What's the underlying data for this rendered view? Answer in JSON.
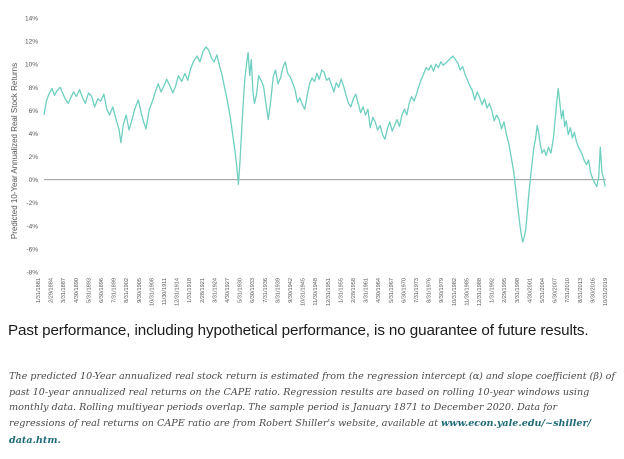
{
  "chart_data": {
    "type": "line",
    "ylabel": "Predicted 10-Year Annualized Real Stock Returns",
    "xlabel": "",
    "ylim": [
      -8,
      14
    ],
    "yticks": [
      14,
      12,
      10,
      8,
      6,
      4,
      2,
      0,
      -2,
      -4,
      -6,
      -8
    ],
    "ytick_labels": [
      "14%",
      "12%",
      "10%",
      "8%",
      "6%",
      "4%",
      "2%",
      "0%",
      "-2%",
      "-4%",
      "-6%",
      "-8%"
    ],
    "xlim": [
      1881.0,
      2019.8
    ],
    "xtick_labels": [
      "1/31/1881",
      "2/29/1884",
      "3/31/1887",
      "4/30/1890",
      "5/31/1893",
      "6/30/1896",
      "7/31/1899",
      "8/31/1902",
      "9/30/1905",
      "10/31/1908",
      "11/30/1911",
      "12/31/1914",
      "1/31/1918",
      "2/28/1921",
      "3/31/1924",
      "4/30/1927",
      "5/31/1930",
      "6/30/1933",
      "7/31/1936",
      "8/31/1939",
      "9/30/1942",
      "10/31/1945",
      "11/30/1948",
      "12/31/1951",
      "1/31/1955",
      "2/28/1958",
      "3/31/1961",
      "4/30/1964",
      "5/31/1967",
      "6/30/1970",
      "7/31/1973",
      "8/31/1976",
      "9/30/1979",
      "10/31/1982",
      "11/30/1985",
      "12/31/1988",
      "1/31/1992",
      "2/29/1995",
      "3/31/1998",
      "4/30/2001",
      "5/31/2004",
      "6/30/2007",
      "7/31/2010",
      "8/31/2013",
      "9/30/2016",
      "10/31/2019"
    ],
    "reference_line": 0,
    "series": [
      {
        "name": "Predicted 10-Year Annualized Real Stock Return",
        "color": "#6fcfc0",
        "points": [
          [
            1881.0,
            5.6
          ],
          [
            1881.6,
            6.8
          ],
          [
            1882.2,
            7.4
          ],
          [
            1883.0,
            7.9
          ],
          [
            1883.6,
            7.3
          ],
          [
            1884.2,
            7.7
          ],
          [
            1885.0,
            8.0
          ],
          [
            1885.6,
            7.5
          ],
          [
            1886.2,
            7.0
          ],
          [
            1887.0,
            6.6
          ],
          [
            1887.6,
            7.1
          ],
          [
            1888.3,
            7.6
          ],
          [
            1889.0,
            7.2
          ],
          [
            1889.8,
            7.8
          ],
          [
            1890.5,
            7.1
          ],
          [
            1891.2,
            6.6
          ],
          [
            1892.0,
            7.5
          ],
          [
            1892.8,
            7.2
          ],
          [
            1893.5,
            6.3
          ],
          [
            1894.3,
            7.0
          ],
          [
            1895.0,
            6.8
          ],
          [
            1895.8,
            7.4
          ],
          [
            1896.5,
            6.1
          ],
          [
            1897.2,
            5.6
          ],
          [
            1898.0,
            6.3
          ],
          [
            1898.8,
            5.2
          ],
          [
            1899.5,
            4.4
          ],
          [
            1900.0,
            3.2
          ],
          [
            1900.6,
            4.8
          ],
          [
            1901.3,
            5.6
          ],
          [
            1902.0,
            4.3
          ],
          [
            1902.8,
            5.3
          ],
          [
            1903.5,
            6.2
          ],
          [
            1904.3,
            6.9
          ],
          [
            1905.0,
            5.8
          ],
          [
            1905.6,
            5.0
          ],
          [
            1906.2,
            4.4
          ],
          [
            1907.0,
            6.1
          ],
          [
            1907.8,
            6.8
          ],
          [
            1908.5,
            7.6
          ],
          [
            1909.2,
            8.3
          ],
          [
            1909.9,
            7.6
          ],
          [
            1910.6,
            8.1
          ],
          [
            1911.3,
            8.7
          ],
          [
            1912.0,
            8.2
          ],
          [
            1912.8,
            7.5
          ],
          [
            1913.5,
            8.1
          ],
          [
            1914.2,
            9.0
          ],
          [
            1915.0,
            8.5
          ],
          [
            1915.8,
            9.2
          ],
          [
            1916.5,
            8.6
          ],
          [
            1917.2,
            9.6
          ],
          [
            1918.0,
            10.3
          ],
          [
            1918.8,
            10.7
          ],
          [
            1919.5,
            10.2
          ],
          [
            1920.3,
            11.1
          ],
          [
            1921.0,
            11.5
          ],
          [
            1921.7,
            11.2
          ],
          [
            1922.4,
            10.5
          ],
          [
            1923.0,
            10.2
          ],
          [
            1923.7,
            10.8
          ],
          [
            1924.4,
            9.8
          ],
          [
            1925.0,
            9.0
          ],
          [
            1925.7,
            7.8
          ],
          [
            1926.3,
            6.8
          ],
          [
            1927.0,
            5.4
          ],
          [
            1927.6,
            3.9
          ],
          [
            1928.2,
            2.4
          ],
          [
            1928.6,
            1.2
          ],
          [
            1929.0,
            -0.4
          ],
          [
            1929.4,
            1.6
          ],
          [
            1929.8,
            4.2
          ],
          [
            1930.2,
            6.6
          ],
          [
            1930.6,
            8.7
          ],
          [
            1931.0,
            9.9
          ],
          [
            1931.4,
            11.0
          ],
          [
            1931.8,
            9.0
          ],
          [
            1932.2,
            10.4
          ],
          [
            1932.6,
            7.6
          ],
          [
            1933.0,
            6.6
          ],
          [
            1933.5,
            7.4
          ],
          [
            1934.0,
            9.0
          ],
          [
            1934.6,
            8.6
          ],
          [
            1935.2,
            8.1
          ],
          [
            1935.8,
            6.6
          ],
          [
            1936.4,
            5.2
          ],
          [
            1937.0,
            6.8
          ],
          [
            1937.6,
            8.9
          ],
          [
            1938.2,
            9.5
          ],
          [
            1938.8,
            8.3
          ],
          [
            1939.4,
            8.8
          ],
          [
            1940.0,
            9.7
          ],
          [
            1940.6,
            10.2
          ],
          [
            1941.2,
            9.2
          ],
          [
            1941.8,
            8.9
          ],
          [
            1942.4,
            8.4
          ],
          [
            1943.0,
            7.8
          ],
          [
            1943.6,
            6.7
          ],
          [
            1944.2,
            7.1
          ],
          [
            1944.8,
            6.5
          ],
          [
            1945.4,
            6.1
          ],
          [
            1946.0,
            7.3
          ],
          [
            1946.6,
            8.3
          ],
          [
            1947.2,
            8.8
          ],
          [
            1947.8,
            8.5
          ],
          [
            1948.4,
            9.2
          ],
          [
            1949.0,
            8.7
          ],
          [
            1949.6,
            9.5
          ],
          [
            1950.2,
            9.3
          ],
          [
            1950.8,
            8.6
          ],
          [
            1951.4,
            8.8
          ],
          [
            1952.0,
            8.2
          ],
          [
            1952.6,
            7.6
          ],
          [
            1953.2,
            8.4
          ],
          [
            1953.8,
            8.0
          ],
          [
            1954.4,
            8.7
          ],
          [
            1955.0,
            8.1
          ],
          [
            1955.6,
            7.3
          ],
          [
            1956.2,
            6.6
          ],
          [
            1956.8,
            6.3
          ],
          [
            1957.4,
            7.0
          ],
          [
            1958.0,
            7.4
          ],
          [
            1958.6,
            6.6
          ],
          [
            1959.2,
            5.8
          ],
          [
            1959.8,
            6.3
          ],
          [
            1960.4,
            5.6
          ],
          [
            1961.0,
            6.1
          ],
          [
            1961.6,
            4.5
          ],
          [
            1962.2,
            5.4
          ],
          [
            1962.8,
            5.0
          ],
          [
            1963.4,
            4.3
          ],
          [
            1964.0,
            4.7
          ],
          [
            1964.6,
            3.9
          ],
          [
            1965.2,
            3.5
          ],
          [
            1965.8,
            4.4
          ],
          [
            1966.4,
            5.0
          ],
          [
            1967.0,
            4.2
          ],
          [
            1967.6,
            4.7
          ],
          [
            1968.2,
            5.2
          ],
          [
            1968.8,
            4.6
          ],
          [
            1969.4,
            5.6
          ],
          [
            1970.0,
            6.1
          ],
          [
            1970.6,
            5.6
          ],
          [
            1971.2,
            6.6
          ],
          [
            1971.8,
            7.2
          ],
          [
            1972.4,
            6.8
          ],
          [
            1973.0,
            7.4
          ],
          [
            1973.6,
            8.1
          ],
          [
            1974.2,
            8.7
          ],
          [
            1974.8,
            9.2
          ],
          [
            1975.4,
            9.7
          ],
          [
            1976.0,
            9.5
          ],
          [
            1976.6,
            9.9
          ],
          [
            1977.2,
            9.4
          ],
          [
            1977.8,
            10.0
          ],
          [
            1978.4,
            9.7
          ],
          [
            1979.0,
            10.2
          ],
          [
            1979.6,
            9.9
          ],
          [
            1980.2,
            10.1
          ],
          [
            1980.8,
            10.3
          ],
          [
            1981.4,
            10.5
          ],
          [
            1982.0,
            10.7
          ],
          [
            1982.6,
            10.4
          ],
          [
            1983.2,
            10.1
          ],
          [
            1983.8,
            9.5
          ],
          [
            1984.4,
            9.8
          ],
          [
            1985.0,
            9.1
          ],
          [
            1985.6,
            8.6
          ],
          [
            1986.2,
            8.1
          ],
          [
            1986.8,
            7.7
          ],
          [
            1987.4,
            6.9
          ],
          [
            1988.0,
            7.6
          ],
          [
            1988.6,
            7.1
          ],
          [
            1989.2,
            6.5
          ],
          [
            1989.8,
            7.0
          ],
          [
            1990.4,
            6.2
          ],
          [
            1991.0,
            6.6
          ],
          [
            1991.6,
            6.0
          ],
          [
            1992.2,
            5.1
          ],
          [
            1992.8,
            5.6
          ],
          [
            1993.4,
            5.2
          ],
          [
            1994.0,
            4.4
          ],
          [
            1994.6,
            5.0
          ],
          [
            1995.2,
            3.9
          ],
          [
            1995.8,
            3.1
          ],
          [
            1996.4,
            1.9
          ],
          [
            1997.0,
            0.7
          ],
          [
            1997.6,
            -1.1
          ],
          [
            1998.0,
            -2.3
          ],
          [
            1998.4,
            -3.6
          ],
          [
            1998.8,
            -4.6
          ],
          [
            1999.2,
            -5.4
          ],
          [
            1999.6,
            -5.0
          ],
          [
            2000.0,
            -4.3
          ],
          [
            2000.4,
            -2.7
          ],
          [
            2000.8,
            -1.0
          ],
          [
            2001.2,
            0.3
          ],
          [
            2001.6,
            1.6
          ],
          [
            2002.0,
            2.8
          ],
          [
            2002.4,
            3.5
          ],
          [
            2002.8,
            4.7
          ],
          [
            2003.2,
            4.0
          ],
          [
            2003.6,
            3.0
          ],
          [
            2004.0,
            2.3
          ],
          [
            2004.5,
            2.6
          ],
          [
            2005.0,
            2.1
          ],
          [
            2005.6,
            2.8
          ],
          [
            2006.2,
            2.3
          ],
          [
            2006.8,
            3.6
          ],
          [
            2007.2,
            5.1
          ],
          [
            2007.6,
            6.6
          ],
          [
            2008.0,
            7.9
          ],
          [
            2008.4,
            6.7
          ],
          [
            2008.8,
            5.3
          ],
          [
            2009.2,
            6.0
          ],
          [
            2009.6,
            4.6
          ],
          [
            2010.0,
            5.1
          ],
          [
            2010.5,
            3.9
          ],
          [
            2011.0,
            4.5
          ],
          [
            2011.5,
            3.6
          ],
          [
            2012.0,
            4.1
          ],
          [
            2012.5,
            3.3
          ],
          [
            2013.0,
            2.8
          ],
          [
            2013.5,
            2.5
          ],
          [
            2014.0,
            2.1
          ],
          [
            2014.5,
            1.6
          ],
          [
            2015.0,
            1.3
          ],
          [
            2015.5,
            1.7
          ],
          [
            2016.0,
            0.6
          ],
          [
            2016.5,
            0.1
          ],
          [
            2017.0,
            -0.3
          ],
          [
            2017.5,
            -0.6
          ],
          [
            2018.0,
            0.2
          ],
          [
            2018.4,
            2.8
          ],
          [
            2018.8,
            0.6
          ],
          [
            2019.2,
            0.1
          ],
          [
            2019.6,
            -0.6
          ]
        ]
      }
    ]
  },
  "disclaimer": "Past performance, including hypothetical performance, is no guarantee of future results.",
  "footnote": {
    "text": "The predicted 10-Year annualized real stock return is estimated from the regression intercept (α) and slope coefficient (β) of past 10-year annualized real returns on the CAPE ratio. Regression results are based on rolling 10-year windows using monthly data. Rolling multiyear periods overlap. The sample period is January 1871 to December 2020. Data for regressions of real returns on CAPE ratio are from Robert Shiller's website, available at",
    "link_text": "www.econ.yale.edu/~shiller/",
    "link_text_2": "data.htm."
  },
  "colors": {
    "line": "#6fcfc0",
    "zero_line": "#9a9a9a",
    "axis_text": "#555555",
    "link": "#1f6a78"
  }
}
